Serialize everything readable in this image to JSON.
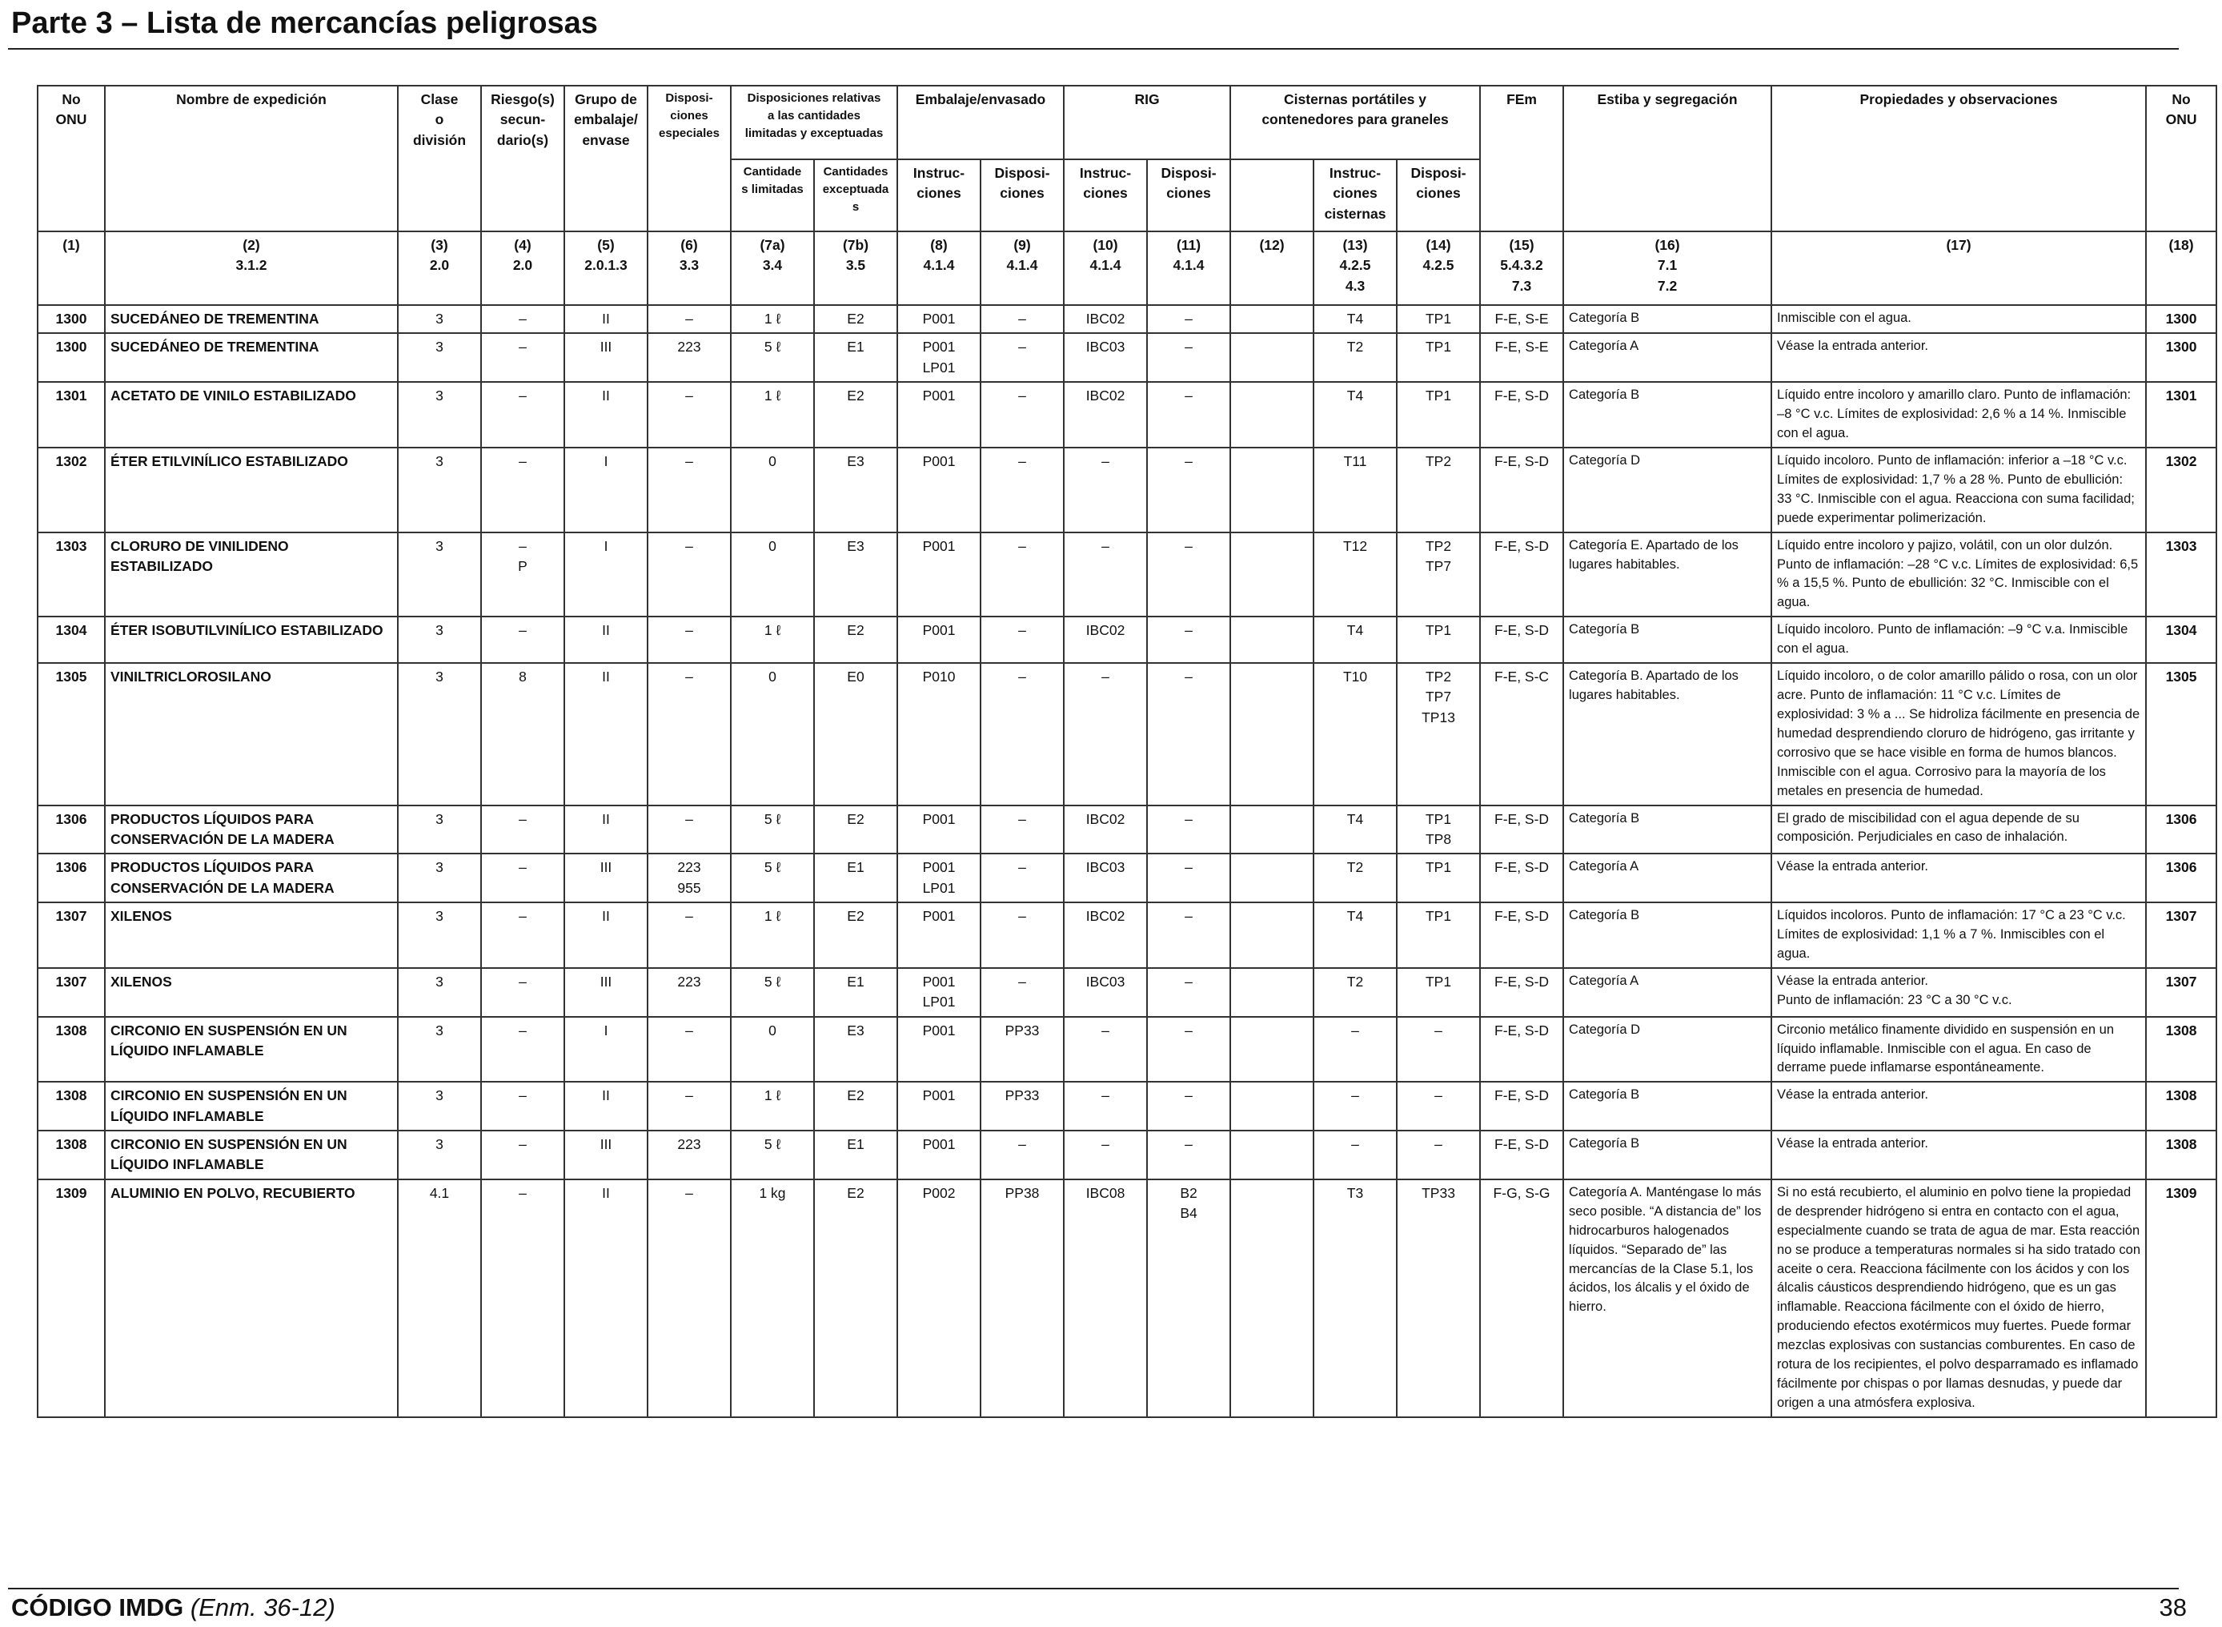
{
  "page": {
    "title": "Parte 3 – Lista de mercancías peligrosas",
    "footer_code": "CÓDIGO IMDG",
    "footer_amend": "(Enm. 36-12)",
    "page_number": "38"
  },
  "headers": {
    "un_no": "No\nONU",
    "name": "Nombre de expedición",
    "class": "Clase\no\ndivisión",
    "subsidiary": "Riesgo(s)\nsecun-\ndario(s)",
    "packing_group": "Grupo de\nembalaje/\nenvase",
    "special_provisions": "Disposi-\nciones\nespeciales",
    "limited_excepted": "Disposiciones relativas\na las cantidades\nlimitadas y exceptuadas",
    "limited": "Cantidade\ns limitadas",
    "excepted": "Cantidades\nexceptuadas",
    "packaging": "Embalaje/envasado",
    "pack_instr": "Instruc-\nciones",
    "pack_prov": "Disposi-\nciones",
    "ibc": "RIG",
    "ibc_instr": "Instruc-\nciones",
    "ibc_prov": "Disposi-\nciones",
    "tanks": "Cisternas portátiles y\ncontenedores para graneles",
    "tank_instr": "Instruc-\nciones\ncisternas",
    "tank_prov": "Disposi-\nciones",
    "ems": "FEm",
    "stowage": "Estiba y segregación",
    "properties": "Propiedades y observaciones",
    "un_no_right": "No\nONU"
  },
  "column_numbers": [
    "(1)",
    "(2)\n3.1.2",
    "(3)\n2.0",
    "(4)\n2.0",
    "(5)\n2.0.1.3",
    "(6)\n3.3",
    "(7a)\n3.4",
    "(7b)\n3.5",
    "(8)\n4.1.4",
    "(9)\n4.1.4",
    "(10)\n4.1.4",
    "(11)\n4.1.4",
    "(12)",
    "(13)\n4.2.5\n4.3",
    "(14)\n4.2.5",
    "(15)\n5.4.3.2\n7.3",
    "(16)\n7.1\n7.2",
    "(17)",
    "(18)"
  ],
  "rows": [
    {
      "un": "1300",
      "name": "SUCEDÁNEO DE TREMENTINA",
      "cls": "3",
      "sub": "–",
      "pg": "II",
      "sp": "–",
      "lq": "1 ℓ",
      "eq": "E2",
      "pi": "P001",
      "pp": "–",
      "ibc": "IBC02",
      "ibcp": "–",
      "c12": "",
      "ti": "T4",
      "tp": "TP1",
      "ems": "F-E, S-E",
      "stow": "Categoría B",
      "prop": "Inmiscible con el agua.",
      "un2": "1300"
    },
    {
      "un": "1300",
      "name": "SUCEDÁNEO DE TREMENTINA",
      "cls": "3",
      "sub": "–",
      "pg": "III",
      "sp": "223",
      "lq": "5 ℓ",
      "eq": "E1",
      "pi": "P001\nLP01",
      "pp": "–",
      "ibc": "IBC03",
      "ibcp": "–",
      "c12": "",
      "ti": "T2",
      "tp": "TP1",
      "ems": "F-E, S-E",
      "stow": "Categoría A",
      "prop": "Véase la entrada anterior.",
      "un2": "1300"
    },
    {
      "un": "1301",
      "name": "ACETATO DE VINILO ESTABILIZADO",
      "cls": "3",
      "sub": "–",
      "pg": "II",
      "sp": "–",
      "lq": "1 ℓ",
      "eq": "E2",
      "pi": "P001",
      "pp": "–",
      "ibc": "IBC02",
      "ibcp": "–",
      "c12": "",
      "ti": "T4",
      "tp": "TP1",
      "ems": "F-E, S-D",
      "stow": "Categoría B",
      "prop": "Líquido entre incoloro y amarillo claro. Punto de inflamación: –8 °C v.c. Límites de explosividad: 2,6 % a 14 %. Inmiscible con el agua.",
      "un2": "1301"
    },
    {
      "un": "1302",
      "name": "ÉTER ETILVINÍLICO ESTABILIZADO",
      "cls": "3",
      "sub": "–",
      "pg": "I",
      "sp": "–",
      "lq": "0",
      "eq": "E3",
      "pi": "P001",
      "pp": "–",
      "ibc": "–",
      "ibcp": "–",
      "c12": "",
      "ti": "T11",
      "tp": "TP2",
      "ems": "F-E, S-D",
      "stow": "Categoría D",
      "prop": "Líquido incoloro. Punto de inflamación: inferior a –18 °C v.c. Límites de explosividad: 1,7 % a 28 %. Punto de ebullición: 33 °C. Inmiscible con el agua. Reacciona con suma facilidad; puede experimentar polimerización.",
      "un2": "1302"
    },
    {
      "un": "1303",
      "name": "CLORURO DE VINILIDENO ESTABILIZADO",
      "cls": "3",
      "sub": "–\nP",
      "pg": "I",
      "sp": "–",
      "lq": "0",
      "eq": "E3",
      "pi": "P001",
      "pp": "–",
      "ibc": "–",
      "ibcp": "–",
      "c12": "",
      "ti": "T12",
      "tp": "TP2\nTP7",
      "ems": "F-E, S-D",
      "stow": "Categoría E. Apartado de los lugares habitables.",
      "prop": "Líquido entre incoloro y pajizo, volátil, con un olor dulzón. Punto de inflamación: –28 °C v.c. Límites de explosividad: 6,5 % a 15,5 %. Punto de ebullición: 32 °C. Inmiscible con el agua.",
      "un2": "1303"
    },
    {
      "un": "1304",
      "name": "ÉTER ISOBUTILVINÍLICO ESTABILIZADO",
      "cls": "3",
      "sub": "–",
      "pg": "II",
      "sp": "–",
      "lq": "1 ℓ",
      "eq": "E2",
      "pi": "P001",
      "pp": "–",
      "ibc": "IBC02",
      "ibcp": "–",
      "c12": "",
      "ti": "T4",
      "tp": "TP1",
      "ems": "F-E, S-D",
      "stow": "Categoría B",
      "prop": "Líquido incoloro. Punto de inflamación: –9 °C v.a. Inmiscible con el agua.",
      "un2": "1304"
    },
    {
      "un": "1305",
      "name": "VINILTRICLOROSILANO",
      "cls": "3",
      "sub": "8",
      "pg": "II",
      "sp": "–",
      "lq": "0",
      "eq": "E0",
      "pi": "P010",
      "pp": "–",
      "ibc": "–",
      "ibcp": "–",
      "c12": "",
      "ti": "T10",
      "tp": "TP2\nTP7\nTP13",
      "ems": "F-E, S-C",
      "stow": "Categoría B. Apartado de los lugares habitables.",
      "prop": "Líquido incoloro, o de color amarillo pálido o rosa, con un olor acre. Punto de inflamación: 11 °C v.c. Límites de explosividad: 3 % a ... Se hidroliza fácilmente en presencia de humedad desprendiendo cloruro de hidrógeno, gas irritante y corrosivo que se hace visible en forma de humos blancos. Inmiscible con el agua. Corrosivo para la mayoría de los metales en presencia de humedad.",
      "un2": "1305"
    },
    {
      "un": "1306",
      "name": "PRODUCTOS LÍQUIDOS PARA CONSERVACIÓN DE LA MADERA",
      "cls": "3",
      "sub": "–",
      "pg": "II",
      "sp": "–",
      "lq": "5 ℓ",
      "eq": "E2",
      "pi": "P001",
      "pp": "–",
      "ibc": "IBC02",
      "ibcp": "–",
      "c12": "",
      "ti": "T4",
      "tp": "TP1\nTP8",
      "ems": "F-E, S-D",
      "stow": "Categoría B",
      "prop": "El grado de miscibilidad con el agua depende de su composición. Perjudiciales en caso de inhalación.",
      "un2": "1306"
    },
    {
      "un": "1306",
      "name": "PRODUCTOS LÍQUIDOS PARA CONSERVACIÓN DE LA MADERA",
      "cls": "3",
      "sub": "–",
      "pg": "III",
      "sp": "223\n955",
      "lq": "5 ℓ",
      "eq": "E1",
      "pi": "P001\nLP01",
      "pp": "–",
      "ibc": "IBC03",
      "ibcp": "–",
      "c12": "",
      "ti": "T2",
      "tp": "TP1",
      "ems": "F-E, S-D",
      "stow": "Categoría A",
      "prop": "Véase la entrada anterior.",
      "un2": "1306"
    },
    {
      "un": "1307",
      "name": "XILENOS",
      "cls": "3",
      "sub": "–",
      "pg": "II",
      "sp": "–",
      "lq": "1 ℓ",
      "eq": "E2",
      "pi": "P001",
      "pp": "–",
      "ibc": "IBC02",
      "ibcp": "–",
      "c12": "",
      "ti": "T4",
      "tp": "TP1",
      "ems": "F-E, S-D",
      "stow": "Categoría B",
      "prop": "Líquidos incoloros. Punto de inflamación: 17 °C a 23 °C v.c. Límites de explosividad: 1,1 % a 7 %. Inmiscibles con el agua.",
      "un2": "1307"
    },
    {
      "un": "1307",
      "name": "XILENOS",
      "cls": "3",
      "sub": "–",
      "pg": "III",
      "sp": "223",
      "lq": "5 ℓ",
      "eq": "E1",
      "pi": "P001\nLP01",
      "pp": "–",
      "ibc": "IBC03",
      "ibcp": "–",
      "c12": "",
      "ti": "T2",
      "tp": "TP1",
      "ems": "F-E, S-D",
      "stow": "Categoría A",
      "prop": "Véase la entrada anterior.\nPunto de inflamación: 23 °C a 30 °C v.c.",
      "un2": "1307"
    },
    {
      "un": "1308",
      "name": "CIRCONIO EN SUSPENSIÓN EN UN LÍQUIDO INFLAMABLE",
      "cls": "3",
      "sub": "–",
      "pg": "I",
      "sp": "–",
      "lq": "0",
      "eq": "E3",
      "pi": "P001",
      "pp": "PP33",
      "ibc": "–",
      "ibcp": "–",
      "c12": "",
      "ti": "–",
      "tp": "–",
      "ems": "F-E, S-D",
      "stow": "Categoría D",
      "prop": "Circonio metálico finamente dividido en suspensión en un líquido inflamable. Inmiscible con el agua. En caso de derrame puede inflamarse espontáneamente.",
      "un2": "1308"
    },
    {
      "un": "1308",
      "name": "CIRCONIO EN SUSPENSIÓN EN UN LÍQUIDO INFLAMABLE",
      "cls": "3",
      "sub": "–",
      "pg": "II",
      "sp": "–",
      "lq": "1 ℓ",
      "eq": "E2",
      "pi": "P001",
      "pp": "PP33",
      "ibc": "–",
      "ibcp": "–",
      "c12": "",
      "ti": "–",
      "tp": "–",
      "ems": "F-E, S-D",
      "stow": "Categoría B",
      "prop": "Véase la entrada anterior.",
      "un2": "1308"
    },
    {
      "un": "1308",
      "name": "CIRCONIO EN SUSPENSIÓN EN UN LÍQUIDO INFLAMABLE",
      "cls": "3",
      "sub": "–",
      "pg": "III",
      "sp": "223",
      "lq": "5 ℓ",
      "eq": "E1",
      "pi": "P001",
      "pp": "–",
      "ibc": "–",
      "ibcp": "–",
      "c12": "",
      "ti": "–",
      "tp": "–",
      "ems": "F-E, S-D",
      "stow": "Categoría B",
      "prop": "Véase la entrada anterior.",
      "un2": "1308"
    },
    {
      "un": "1309",
      "name": "ALUMINIO EN POLVO, RECUBIERTO",
      "cls": "4.1",
      "sub": "–",
      "pg": "II",
      "sp": "–",
      "lq": "1 kg",
      "eq": "E2",
      "pi": "P002",
      "pp": "PP38",
      "ibc": "IBC08",
      "ibcp": "B2\nB4",
      "c12": "",
      "ti": "T3",
      "tp": "TP33",
      "ems": "F-G, S-G",
      "stow": "Categoría A. Manténgase lo más seco posible. “A distancia de” los hidrocarburos halogenados líquidos. “Separado de” las mercancías de la Clase 5.1, los ácidos, los álcalis y el óxido de hierro.",
      "prop": "Si no está recubierto, el aluminio en polvo tiene la propiedad de desprender hidrógeno si entra en contacto con el agua, especialmente cuando se trata de agua de mar. Esta reacción no se produce a temperaturas normales si ha sido tratado con aceite o cera. Reacciona fácilmente con los ácidos y con los álcalis cáusticos desprendiendo hidrógeno, que es un gas inflamable. Reacciona fácilmente con el óxido de hierro, produciendo efectos exotérmicos muy fuertes. Puede formar mezclas explosivas con sustancias comburentes. En caso de rotura de los recipientes, el polvo desparramado es inflamado fácilmente por chispas o por llamas desnudas, y puede dar origen a una atmósfera explosiva.",
      "un2": "1309"
    }
  ]
}
